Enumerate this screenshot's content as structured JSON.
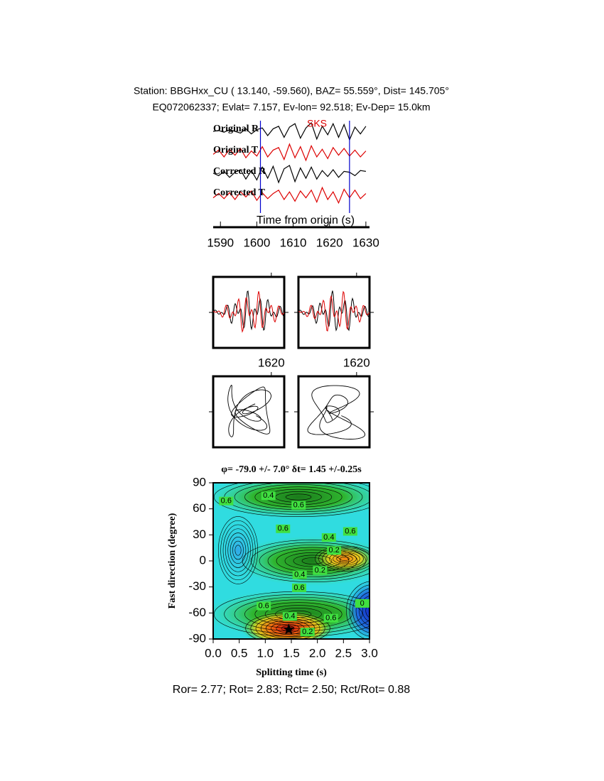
{
  "header": {
    "line1": "Station: BBGHxx_CU (  13.140,  -59.560), BAZ=   55.559°, Dist=  145.705°",
    "line2": "EQ072062337; Evlat=   7.157, Ev-lon=  92.518; Ev-Dep= 15.0km"
  },
  "chart_data": [
    {
      "type": "line",
      "phase_label": "SKS",
      "xlabel": "Time from origin (s)",
      "xlim": [
        1588,
        1631
      ],
      "xticks": [
        1590,
        1600,
        1610,
        1620,
        1630
      ],
      "phase_markers": [
        1601,
        1625.5
      ],
      "x": [
        1588,
        1589.5,
        1591,
        1592.5,
        1594,
        1595.5,
        1597,
        1598.5,
        1600,
        1601.5,
        1603,
        1604.5,
        1606,
        1607.5,
        1609,
        1610.5,
        1612,
        1613.5,
        1615,
        1616.5,
        1618,
        1619.5,
        1621,
        1622.5,
        1624,
        1625.5,
        1627,
        1628.5,
        1630
      ],
      "series": [
        {
          "name": "Original R",
          "color": "#000000",
          "values": [
            0,
            0.1,
            -0.1,
            0.2,
            0,
            -0.2,
            0.3,
            -0.3,
            0.2,
            0.4,
            -0.5,
            0.3,
            0.6,
            -0.7,
            0.5,
            0.9,
            -0.8,
            0.4,
            1,
            -0.9,
            0.6,
            -0.4,
            0.9,
            -0.7,
            0.8,
            -1,
            0.5,
            -0.3,
            0.6
          ]
        },
        {
          "name": "Original T",
          "color": "#dd0000",
          "values": [
            -0.2,
            0.3,
            -0.5,
            0.4,
            -0.3,
            0.5,
            -0.6,
            0.2,
            -0.4,
            0.7,
            -0.5,
            0.3,
            0.6,
            -0.8,
            1,
            -0.6,
            0.7,
            -0.9,
            0.8,
            -0.5,
            0.4,
            -0.7,
            0.6,
            -0.3,
            0.5,
            -0.4,
            0.3,
            -0.5,
            0.2
          ]
        },
        {
          "name": "Corrected R",
          "color": "#000000",
          "values": [
            0.1,
            -0.2,
            0.3,
            -0.4,
            0.2,
            0.5,
            -0.6,
            0.4,
            -0.7,
            0.8,
            -0.5,
            0.9,
            -1,
            0.6,
            1,
            -0.9,
            0.7,
            -0.5,
            0.8,
            -0.6,
            0.4,
            -0.3,
            0.5,
            -0.4,
            0.3,
            0.2,
            -0.2,
            0.4,
            0.3
          ]
        },
        {
          "name": "Corrected T",
          "color": "#dd0000",
          "values": [
            -0.3,
            0.2,
            -0.4,
            0.3,
            -0.5,
            0.4,
            -0.2,
            0.5,
            -0.6,
            0.3,
            -0.4,
            0.2,
            0.6,
            -0.5,
            0.4,
            -0.7,
            0.5,
            -0.3,
            0.6,
            -0.8,
            0.9,
            -0.5,
            0.4,
            -0.9,
            0.7,
            -0.3,
            0.6,
            -0.4,
            0.2
          ]
        }
      ]
    },
    {
      "type": "window",
      "xlim": [
        1602,
        1624
      ],
      "xticks": [
        1620
      ]
    },
    {
      "type": "contour",
      "title": "φ= -79.0 +/- 7.0° δt= 1.45 +/-0.25s",
      "xlabel": "Splitting time (s)",
      "ylabel": "Fast direction (degree)",
      "xlim": [
        0,
        3
      ],
      "ylim": [
        -90,
        90
      ],
      "xticks": [
        {
          "value": 0,
          "label": "0.0"
        },
        0.5,
        {
          "value": 1,
          "label": "1.0"
        },
        1.5,
        {
          "value": 2,
          "label": "2.0"
        },
        2.5,
        {
          "value": 3,
          "label": "3.0"
        }
      ],
      "yticks": [
        -90,
        -60,
        -30,
        0,
        30,
        60,
        90
      ],
      "best": {
        "x": 1.45,
        "y": -79
      },
      "contour_labels": [
        {
          "x": 1.06,
          "y": 75,
          "level": 0.4
        },
        {
          "x": 1.64,
          "y": 64,
          "level": 0.6
        },
        {
          "x": 0.25,
          "y": 69,
          "level": 0.6
        },
        {
          "x": 1.34,
          "y": 37,
          "level": 0.6
        },
        {
          "x": 2.22,
          "y": 27,
          "level": 0.4
        },
        {
          "x": 2.32,
          "y": 12,
          "level": 0.2
        },
        {
          "x": 2.63,
          "y": 34,
          "level": 0.6
        },
        {
          "x": 1.66,
          "y": -16,
          "level": 0.4
        },
        {
          "x": 2.05,
          "y": -11,
          "level": 0.2
        },
        {
          "x": 1.65,
          "y": -31,
          "level": 0.6
        },
        {
          "x": 0.97,
          "y": -52,
          "level": 0.6
        },
        {
          "x": 1.47,
          "y": -64,
          "level": 0.4
        },
        {
          "x": 2.26,
          "y": -66,
          "level": 0.6
        },
        {
          "x": 1.81,
          "y": -82,
          "level": 0.2
        },
        {
          "x": 2.86,
          "y": -49,
          "level": 0
        }
      ]
    }
  ],
  "footer": "Ror= 2.77; Rot= 2.83; Rct= 2.50; Rct/Rot= 0.88"
}
